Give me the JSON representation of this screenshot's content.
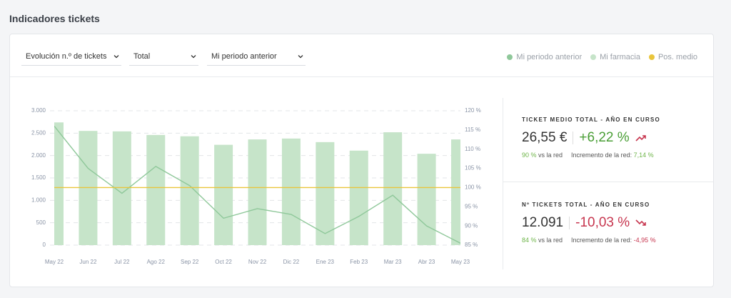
{
  "header": {
    "title": "Indicadores tickets"
  },
  "filters": [
    "Evolución n.º de tickets",
    "Total",
    "Mi periodo anterior"
  ],
  "chart_data": {
    "type": "bar",
    "categories": [
      "May 22",
      "Jun 22",
      "Jul 22",
      "Ago 22",
      "Sep 22",
      "Oct 22",
      "Nov 22",
      "Dic 22",
      "Ene 23",
      "Feb 23",
      "Mar 23",
      "Abr 23",
      "May 23"
    ],
    "series": [
      {
        "name": "Mi periodo anterior",
        "color": "#8fc89a",
        "type": "line",
        "axis": "y2",
        "values": [
          116,
          105,
          98.5,
          105.5,
          100.5,
          92,
          94.5,
          93,
          88,
          92.5,
          98,
          90,
          85.5
        ]
      },
      {
        "name": "Mi farmacia",
        "color": "#c6e4c9",
        "type": "bar",
        "values": [
          2740,
          2550,
          2540,
          2460,
          2430,
          2240,
          2360,
          2380,
          2300,
          2110,
          2520,
          2040,
          2360
        ]
      },
      {
        "name": "Pos. medio",
        "color": "#e9c53c",
        "type": "line",
        "axis": "y2",
        "values": [
          100,
          100,
          100,
          100,
          100,
          100,
          100,
          100,
          100,
          100,
          100,
          100,
          100
        ]
      }
    ],
    "ylim": [
      0,
      3000
    ],
    "yticks": [
      0,
      500,
      {
        "value": 1000,
        "label": "1.000"
      },
      {
        "value": 1500,
        "label": "1.500"
      },
      {
        "value": 2000,
        "label": "2.000"
      },
      {
        "value": 2500,
        "label": "2.500"
      },
      {
        "value": 3000,
        "label": "3.000"
      }
    ],
    "y2lim": [
      85,
      120
    ],
    "y2ticks": [
      {
        "value": 85,
        "label": "85 %"
      },
      {
        "value": 90,
        "label": "90 %"
      },
      {
        "value": 95,
        "label": "95 %"
      },
      {
        "value": 100,
        "label": "100 %"
      },
      {
        "value": 105,
        "label": "105 %"
      },
      {
        "value": 110,
        "label": "110 %"
      },
      {
        "value": 115,
        "label": "115 %"
      },
      {
        "value": 120,
        "label": "120 %"
      }
    ],
    "grid": true,
    "legend": "top-right"
  },
  "kpis": [
    {
      "title": "TICKET MEDIO TOTAL - AÑO EN CURSO",
      "value": "26,55 €",
      "change": "+6,22 %",
      "share": "90 %",
      "share_text": "vs la red",
      "network_label": "Incremento de la red:",
      "network_change": "7,14 %"
    },
    {
      "title": "Nº TICKETS TOTAL - AÑO EN CURSO",
      "value": "12.091",
      "change": "-10,03 %",
      "share": "84 %",
      "share_text": "vs la red",
      "network_label": "Incremento de la red:",
      "network_change": "-4,95 %"
    }
  ]
}
